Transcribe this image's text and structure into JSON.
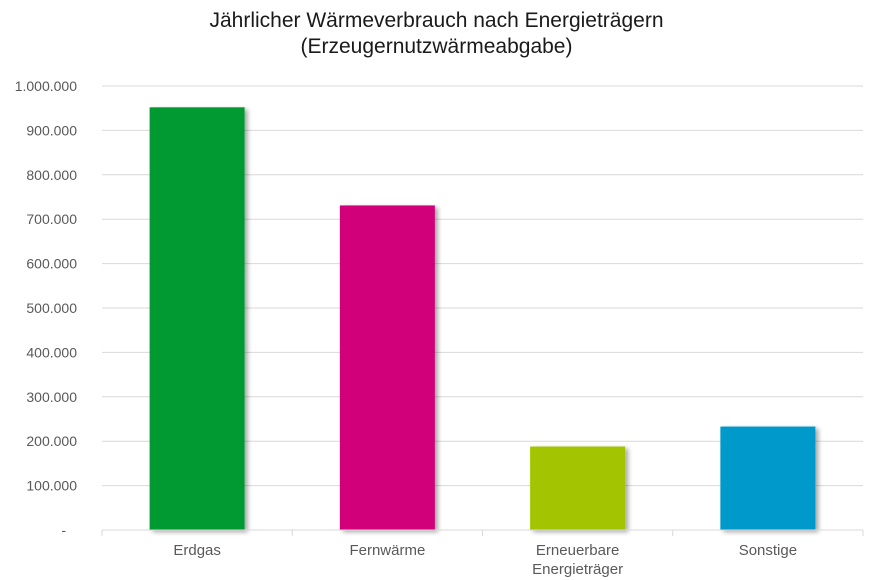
{
  "chart_data": {
    "type": "bar",
    "title_line1": "Jährlicher Wärmeverbrauch nach Energieträgern",
    "title_line2": "(Erzeugernutzwärmeabgabe)",
    "categories": [
      [
        "Erdgas"
      ],
      [
        "Fernwärme"
      ],
      [
        "Erneuerbare",
        "Energieträger"
      ],
      [
        "Sonstige"
      ]
    ],
    "values": [
      952000,
      731000,
      188000,
      233000
    ],
    "colors": [
      "#009933",
      "#d1007a",
      "#a3c400",
      "#0099cc"
    ],
    "ylim": [
      0,
      1000000
    ],
    "yticks": [
      0,
      100000,
      200000,
      300000,
      400000,
      500000,
      600000,
      700000,
      800000,
      900000,
      1000000
    ],
    "ytick_labels": [
      "-",
      "100.000",
      "200.000",
      "300.000",
      "400.000",
      "500.000",
      "600.000",
      "700.000",
      "800.000",
      "900.000",
      "1.000.000"
    ],
    "grid": true,
    "legend": "none"
  }
}
